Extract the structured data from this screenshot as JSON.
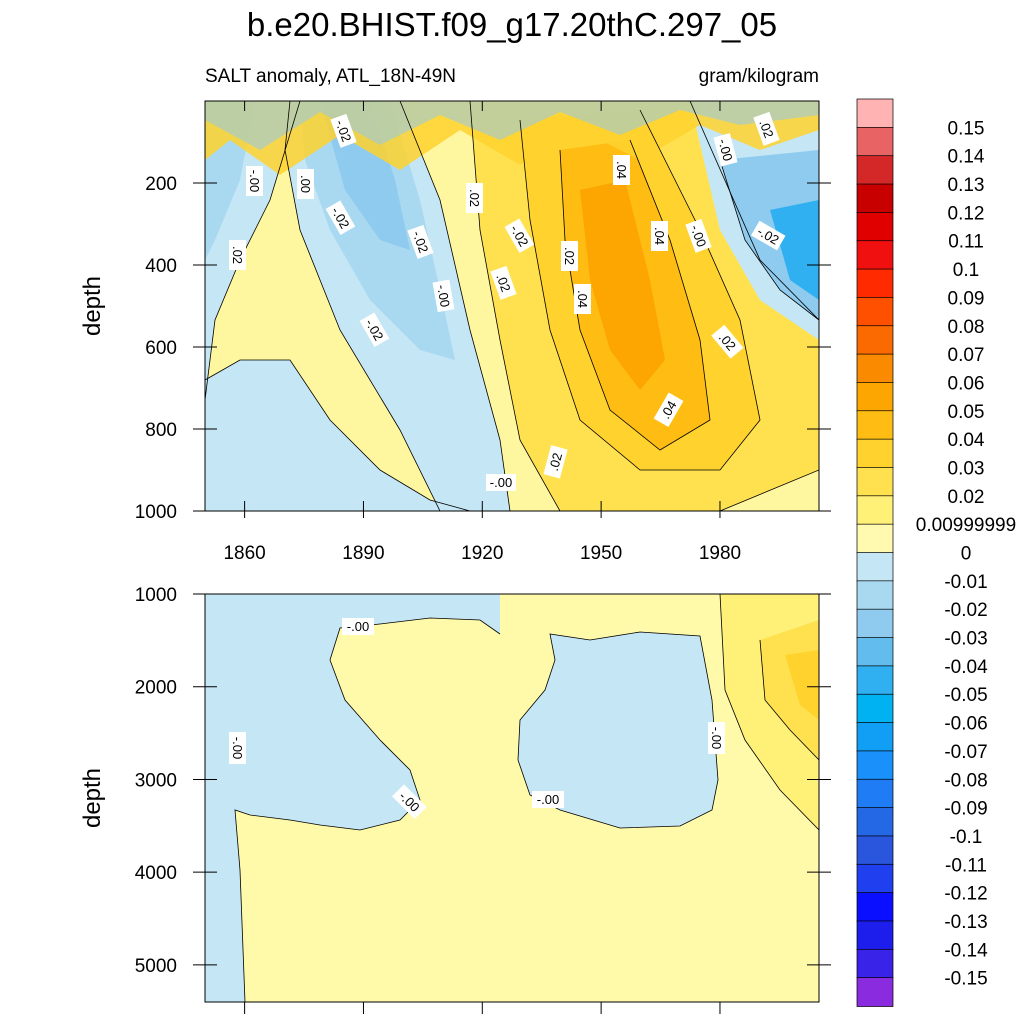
{
  "chart_data": {
    "type": "heatmap",
    "title": "b.e20.BHIST.f09_g17.20thC.297_05",
    "subtitle_left": "SALT anomaly, ATL_18N-49N",
    "subtitle_right": "gram/kilogram",
    "ylabel": "depth",
    "x_ticks": [
      "1860",
      "1890",
      "1920",
      "1950",
      "1980"
    ],
    "x_range": [
      1850,
      2005
    ],
    "upper_panel": {
      "y_range": [
        0,
        1000
      ],
      "y_ticks": [
        "200",
        "400",
        "600",
        "800",
        "1000"
      ],
      "contour_labels": [
        "-.02",
        "-.00",
        ".00",
        "-.02",
        ".02",
        "-.02",
        "-.02",
        ".02",
        ".02",
        ".02",
        "-.00",
        ".04",
        ".04",
        ".04",
        "-.00",
        "-.02",
        ".02",
        "-.00",
        ".02",
        "-.02",
        ".04",
        ".02",
        "-.00"
      ]
    },
    "lower_panel": {
      "y_range": [
        1000,
        5400
      ],
      "y_ticks": [
        "1000",
        "2000",
        "3000",
        "4000",
        "5000"
      ],
      "contour_labels": [
        "-.00",
        "-.00",
        "-.00",
        "-.00",
        "-.00"
      ]
    },
    "colorbar": {
      "labels": [
        "0.15",
        "0.14",
        "0.13",
        "0.12",
        "0.11",
        "0.1",
        "0.09",
        "0.08",
        "0.07",
        "0.06",
        "0.05",
        "0.04",
        "0.03",
        "0.02",
        "0.00999999",
        "0",
        "-0.01",
        "-0.02",
        "-0.03",
        "-0.04",
        "-0.05",
        "-0.06",
        "-0.07",
        "-0.08",
        "-0.09",
        "-0.1",
        "-0.11",
        "-0.12",
        "-0.13",
        "-0.14",
        "-0.15"
      ],
      "colors": [
        "#ffb3b3",
        "#e86464",
        "#d42828",
        "#c80000",
        "#e00000",
        "#f01010",
        "#ff2a00",
        "#ff5000",
        "#fb6a00",
        "#fa8a00",
        "#fda500",
        "#ffbd14",
        "#ffd22e",
        "#ffe150",
        "#fff077",
        "#fffab0",
        "#c5e6f4",
        "#a9d9f1",
        "#8fcbee",
        "#62bdee",
        "#30b0f0",
        "#00b2f2",
        "#109ff5",
        "#1a90fa",
        "#1f7cf5",
        "#2568e6",
        "#2a55dd",
        "#2040f0",
        "#0a10ff",
        "#1d1dec",
        "#3a23e8",
        "#8b2be0"
      ]
    }
  }
}
